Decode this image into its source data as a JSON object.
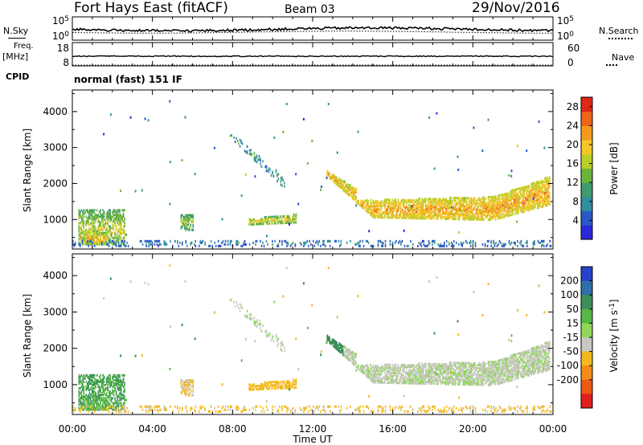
{
  "header": {
    "station": "Fort Hays East (fitACF)",
    "beam": "Beam 03",
    "date": "29/Nov/2016"
  },
  "side_labels": {
    "noise_sky": "N.Sky",
    "noise_search": "N.Search",
    "freq": "Freq.",
    "freq_unit": "[MHz]",
    "nave": "Nave",
    "cpid": "CPID",
    "mode": "normal (fast) 151 IF"
  },
  "chart_data": [
    {
      "type": "line",
      "name": "noise-panel",
      "left_ticks": [
        "10^5",
        "10^0"
      ],
      "right_ticks": [
        "10^5",
        "10^0"
      ],
      "left_label": "N.Sky",
      "right_label": "N.Search"
    },
    {
      "type": "line",
      "name": "freq-nave-panel",
      "left_ticks": [
        18,
        8
      ],
      "right_ticks": [
        60,
        0
      ],
      "left_label": "Freq. [MHz]",
      "right_label": "Nave",
      "freq_value": 10.5
    },
    {
      "type": "heatmap",
      "name": "power",
      "ylabel": "Slant Range [km]",
      "yticks": [
        1000,
        2000,
        3000,
        4000
      ],
      "ylim": [
        180,
        4600
      ],
      "xlim": [
        0,
        24
      ],
      "colorbar_label": "Power [dB]",
      "colorbar_ticks": [
        4,
        8,
        12,
        16,
        20,
        24,
        28
      ],
      "colorbar_range": [
        0,
        30
      ],
      "colorbar_colors": [
        "#2a2ad8",
        "#2a58c8",
        "#2f8ea0",
        "#3f9a6e",
        "#6bb43c",
        "#b9cf2a",
        "#f5c62a",
        "#f59a1e",
        "#ee6418",
        "#e0281a"
      ]
    },
    {
      "type": "heatmap",
      "name": "velocity",
      "ylabel": "Slant Range [km]",
      "yticks": [
        1000,
        2000,
        3000,
        4000
      ],
      "ylim": [
        180,
        4600
      ],
      "xlim": [
        0,
        24
      ],
      "colorbar_label": "Velocity [m s-1]",
      "colorbar_ticks": [
        200,
        100,
        50,
        15,
        -15,
        -50,
        -100,
        -200
      ],
      "colorbar_colors": [
        "#2842c8",
        "#2f6fa8",
        "#3d8f5a",
        "#56b845",
        "#8fd65a",
        "#c8c8c0",
        "#f2b81e",
        "#f28c18",
        "#ec5a14",
        "#e0201a"
      ]
    }
  ],
  "xaxis": {
    "ticks": [
      "00:00",
      "04:00",
      "08:00",
      "12:00",
      "16:00",
      "20:00",
      "00:00"
    ],
    "label": "Time UT"
  }
}
